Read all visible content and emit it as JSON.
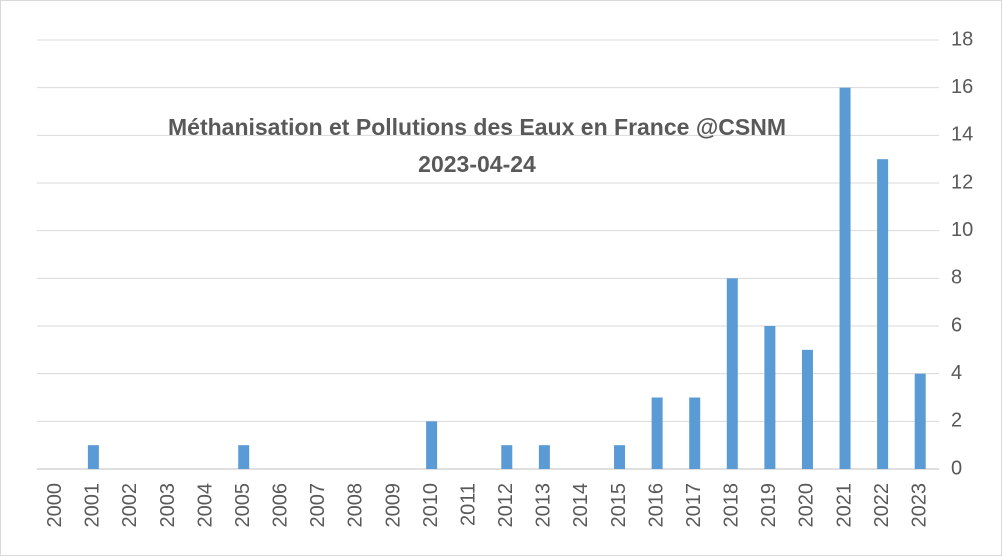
{
  "chart_data": {
    "type": "bar",
    "title": "Méthanisation et Pollutions des Eaux en France @CSNM",
    "subtitle": "2023-04-24",
    "categories": [
      "2000",
      "2001",
      "2002",
      "2003",
      "2004",
      "2005",
      "2006",
      "2007",
      "2008",
      "2009",
      "2010",
      "2011",
      "2012",
      "2013",
      "2014",
      "2015",
      "2016",
      "2017",
      "2018",
      "2019",
      "2020",
      "2021",
      "2022",
      "2023"
    ],
    "values": [
      0,
      1,
      0,
      0,
      0,
      1,
      0,
      0,
      0,
      0,
      2,
      0,
      1,
      1,
      0,
      1,
      3,
      3,
      8,
      6,
      5,
      16,
      13,
      4
    ],
    "color": "#5b9bd5",
    "ylim": [
      0,
      18
    ],
    "yticks": [
      0,
      2,
      4,
      6,
      8,
      10,
      12,
      14,
      16,
      18
    ],
    "grid": true,
    "y_axis_side": "right"
  }
}
